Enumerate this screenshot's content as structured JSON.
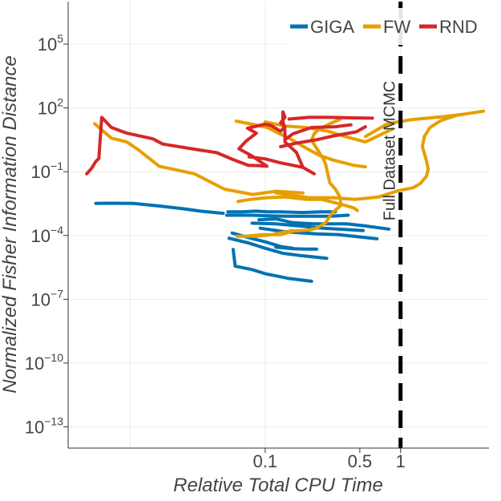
{
  "chart_data": {
    "type": "line",
    "xlabel": "Relative Total CPU Time",
    "ylabel": "Normalized Fisher Information Distance",
    "x_scale": "log",
    "y_scale": "log",
    "xlim": [
      0.0035,
      4.5
    ],
    "ylim": [
      1e-14,
      10000000.0
    ],
    "x_ticks": [
      {
        "value": 0.1,
        "label": "0.1"
      },
      {
        "value": 0.5,
        "label": "0.5"
      },
      {
        "value": 1,
        "label": "1"
      }
    ],
    "y_ticks": [
      {
        "value": 100000.0,
        "base": "10",
        "exp": "5"
      },
      {
        "value": 100.0,
        "base": "10",
        "exp": "2"
      },
      {
        "value": 0.1,
        "base": "10",
        "exp": "−1"
      },
      {
        "value": 0.0001,
        "base": "10",
        "exp": "−4"
      },
      {
        "value": 1e-07,
        "base": "10",
        "exp": "−7"
      },
      {
        "value": 1e-10,
        "base": "10",
        "exp": "−10"
      },
      {
        "value": 1e-13,
        "base": "10",
        "exp": "−13"
      }
    ],
    "grid": true,
    "legend_position": "top-right",
    "annotations": [
      {
        "type": "vline",
        "x": 1,
        "style": "dashed",
        "color": "#000000",
        "label": "Full Dataset MCMC"
      }
    ],
    "series": [
      {
        "name": "GIGA",
        "color": "#0072b2",
        "paths": [
          [
            [
              0.0056,
              0.0032
            ],
            [
              0.0072,
              0.0033
            ],
            [
              0.0106,
              0.0032
            ],
            [
              0.016,
              0.0025
            ],
            [
              0.025,
              0.0018
            ],
            [
              0.0332,
              0.0014
            ],
            [
              0.049,
              0.0011
            ]
          ],
          [
            [
              0.053,
              0.0013
            ],
            [
              0.068,
              0.0013
            ],
            [
              0.085,
              0.0014
            ],
            [
              0.104,
              0.0013
            ],
            [
              0.13,
              0.0013
            ],
            [
              0.187,
              0.0012
            ],
            [
              0.26,
              0.0013
            ],
            [
              0.33,
              0.0013
            ]
          ],
          [
            [
              0.052,
              0.0009
            ],
            [
              0.08,
              0.0009
            ],
            [
              0.1,
              0.00085
            ],
            [
              0.14,
              0.0008
            ],
            [
              0.2,
              0.0008
            ],
            [
              0.3,
              0.0008
            ],
            [
              0.41,
              0.0009
            ]
          ],
          [
            [
              0.09,
              0.00055
            ],
            [
              0.12,
              0.0006
            ],
            [
              0.16,
              0.0004
            ],
            [
              0.23,
              0.00035
            ],
            [
              0.4,
              0.00035
            ],
            [
              0.55,
              0.00028
            ],
            [
              0.82,
              0.0002
            ]
          ],
          [
            [
              0.08,
              0.00038
            ],
            [
              0.12,
              0.00035
            ],
            [
              0.18,
              0.00028
            ],
            [
              0.27,
              0.00022
            ],
            [
              0.4,
              0.00019
            ],
            [
              0.53,
              0.00017
            ]
          ],
          [
            [
              0.092,
              0.00022
            ],
            [
              0.14,
              0.00015
            ],
            [
              0.24,
              0.00012
            ],
            [
              0.35,
              0.00011
            ],
            [
              0.67,
              7e-05
            ]
          ],
          [
            [
              0.057,
              0.00013
            ],
            [
              0.078,
              7.5e-05
            ],
            [
              0.1,
              5e-05
            ],
            [
              0.13,
              3e-05
            ],
            [
              0.16,
              2.5e-05
            ]
          ],
          [
            [
              0.12,
              2.8e-05
            ],
            [
              0.16,
              2.4e-05
            ],
            [
              0.2,
              2.3e-05
            ],
            [
              0.24,
              2.3e-05
            ]
          ],
          [
            [
              0.054,
              7.4e-05
            ],
            [
              0.075,
              4.5e-05
            ],
            [
              0.1,
              2.5e-05
            ],
            [
              0.135,
              1.45e-05
            ],
            [
              0.18,
              1.15e-05
            ],
            [
              0.285,
              8.5e-06
            ]
          ],
          [
            [
              0.058,
              2.2e-05
            ],
            [
              0.06,
              3.6e-06
            ],
            [
              0.08,
              2.5e-06
            ],
            [
              0.1,
              1.6e-06
            ],
            [
              0.15,
              9.5e-07
            ],
            [
              0.22,
              7e-07
            ]
          ]
        ]
      },
      {
        "name": "FW",
        "color": "#e69f00",
        "paths": [
          [
            [
              0.0055,
              18
            ],
            [
              0.0073,
              3.8
            ],
            [
              0.0095,
              2.5
            ],
            [
              0.0114,
              1.15
            ],
            [
              0.0165,
              0.18
            ],
            [
              0.03,
              0.08
            ],
            [
              0.05,
              0.015
            ],
            [
              0.081,
              0.0085
            ],
            [
              0.12,
              0.012
            ],
            [
              0.19,
              0.01
            ]
          ],
          [
            [
              0.12,
              0.01
            ],
            [
              0.21,
              0.006
            ],
            [
              0.32,
              0.006
            ],
            [
              0.46,
              0.005
            ],
            [
              0.69,
              0.0065
            ],
            [
              0.93,
              0.012
            ],
            [
              1.25,
              0.018
            ]
          ],
          [
            [
              1.25,
              0.018
            ],
            [
              1.4,
              0.028
            ],
            [
              1.55,
              0.06
            ],
            [
              1.6,
              0.13
            ],
            [
              1.55,
              0.35
            ],
            [
              1.45,
              1.5
            ],
            [
              1.5,
              4.5
            ],
            [
              1.65,
              12
            ],
            [
              2.0,
              26
            ],
            [
              2.6,
              45
            ],
            [
              4.1,
              70
            ]
          ],
          [
            [
              0.55,
              4.5
            ],
            [
              0.8,
              18
            ],
            [
              1.2,
              28
            ],
            [
              2.0,
              38
            ],
            [
              2.9,
              50
            ]
          ],
          [
            [
              0.061,
              24
            ],
            [
              0.08,
              17
            ],
            [
              0.104,
              12
            ],
            [
              0.122,
              7
            ],
            [
              0.15,
              3.8
            ],
            [
              0.2,
              1.3
            ],
            [
              0.25,
              0.6
            ],
            [
              0.32,
              0.35
            ],
            [
              0.45,
              0.2
            ],
            [
              0.55,
              0.17
            ]
          ],
          [
            [
              0.1,
              22
            ],
            [
              0.14,
              14
            ],
            [
              0.2,
              12
            ],
            [
              0.29,
              8
            ],
            [
              0.39,
              4.5
            ],
            [
              0.55,
              2.5
            ],
            [
              0.87,
              10
            ]
          ],
          [
            [
              0.063,
              0.004
            ],
            [
              0.078,
              0.005
            ],
            [
              0.103,
              0.006
            ],
            [
              0.14,
              0.0065
            ],
            [
              0.2,
              0.005
            ],
            [
              0.26,
              0.005
            ],
            [
              0.36,
              0.003
            ],
            [
              0.45,
              0.002
            ],
            [
              0.48,
              0.0015
            ]
          ],
          [
            [
              0.36,
              30
            ],
            [
              0.3,
              18
            ],
            [
              0.25,
              10
            ],
            [
              0.23,
              6
            ],
            [
              0.22,
              3
            ],
            [
              0.27,
              0.38
            ],
            [
              0.28,
              0.22
            ],
            [
              0.3,
              0.03
            ],
            [
              0.33,
              0.015
            ],
            [
              0.36,
              0.0058
            ],
            [
              0.36,
              0.0025
            ],
            [
              0.31,
              0.0011
            ],
            [
              0.28,
              0.0004
            ],
            [
              0.24,
              0.00022
            ],
            [
              0.21,
              0.00018
            ],
            [
              0.16,
              0.00016
            ],
            [
              0.13,
              0.00011
            ],
            [
              0.095,
              0.00011
            ],
            [
              0.072,
              9.2e-05
            ],
            [
              0.062,
              9.2e-05
            ],
            [
              0.084,
              9.2e-05
            ],
            [
              0.112,
              0.00011
            ],
            [
              0.158,
              0.00017
            ]
          ]
        ]
      },
      {
        "name": "RND",
        "color": "#d62728",
        "paths": [
          [
            [
              0.0048,
              0.08
            ],
            [
              0.0052,
              0.14
            ],
            [
              0.0056,
              0.3
            ],
            [
              0.0059,
              0.42
            ],
            [
              0.0062,
              36
            ],
            [
              0.0073,
              12
            ],
            [
              0.0095,
              6.5
            ],
            [
              0.0148,
              3.5
            ],
            [
              0.0175,
              2
            ],
            [
              0.03,
              1.15
            ],
            [
              0.044,
              0.78
            ],
            [
              0.058,
              0.37
            ],
            [
              0.075,
              0.2
            ]
          ],
          [
            [
              0.075,
              0.2
            ],
            [
              0.092,
              0.19
            ],
            [
              0.103,
              0.18
            ],
            [
              0.08,
              0.55
            ],
            [
              0.064,
              1.2
            ],
            [
              0.072,
              2.7
            ],
            [
              0.086,
              6.5
            ],
            [
              0.074,
              11
            ],
            [
              0.099,
              17
            ],
            [
              0.11,
              15
            ],
            [
              0.13,
              8
            ],
            [
              0.14,
              13
            ],
            [
              0.13,
              20
            ],
            [
              0.14,
              36
            ],
            [
              0.135,
              65
            ],
            [
              0.135,
              24
            ],
            [
              0.14,
              9
            ],
            [
              0.14,
              2.5
            ],
            [
              0.17,
              0.8
            ],
            [
              0.19,
              0.16
            ]
          ],
          [
            [
              0.076,
              0.5
            ],
            [
              0.1,
              0.4
            ],
            [
              0.13,
              0.26
            ],
            [
              0.16,
              0.2
            ],
            [
              0.19,
              0.16
            ],
            [
              0.23,
              0.08
            ]
          ],
          [
            [
              0.13,
              1.5
            ],
            [
              0.17,
              2.2
            ],
            [
              0.24,
              3.2
            ],
            [
              0.33,
              5
            ],
            [
              0.47,
              7.5
            ],
            [
              0.55,
              13
            ]
          ],
          [
            [
              0.15,
              30
            ],
            [
              0.21,
              36
            ],
            [
              0.3,
              36
            ],
            [
              0.42,
              34
            ],
            [
              0.62,
              33
            ]
          ],
          [
            [
              0.14,
              3.2
            ],
            [
              0.16,
              6
            ],
            [
              0.22,
              12
            ],
            [
              0.33,
              13
            ],
            [
              0.43,
              16
            ]
          ]
        ]
      }
    ]
  }
}
